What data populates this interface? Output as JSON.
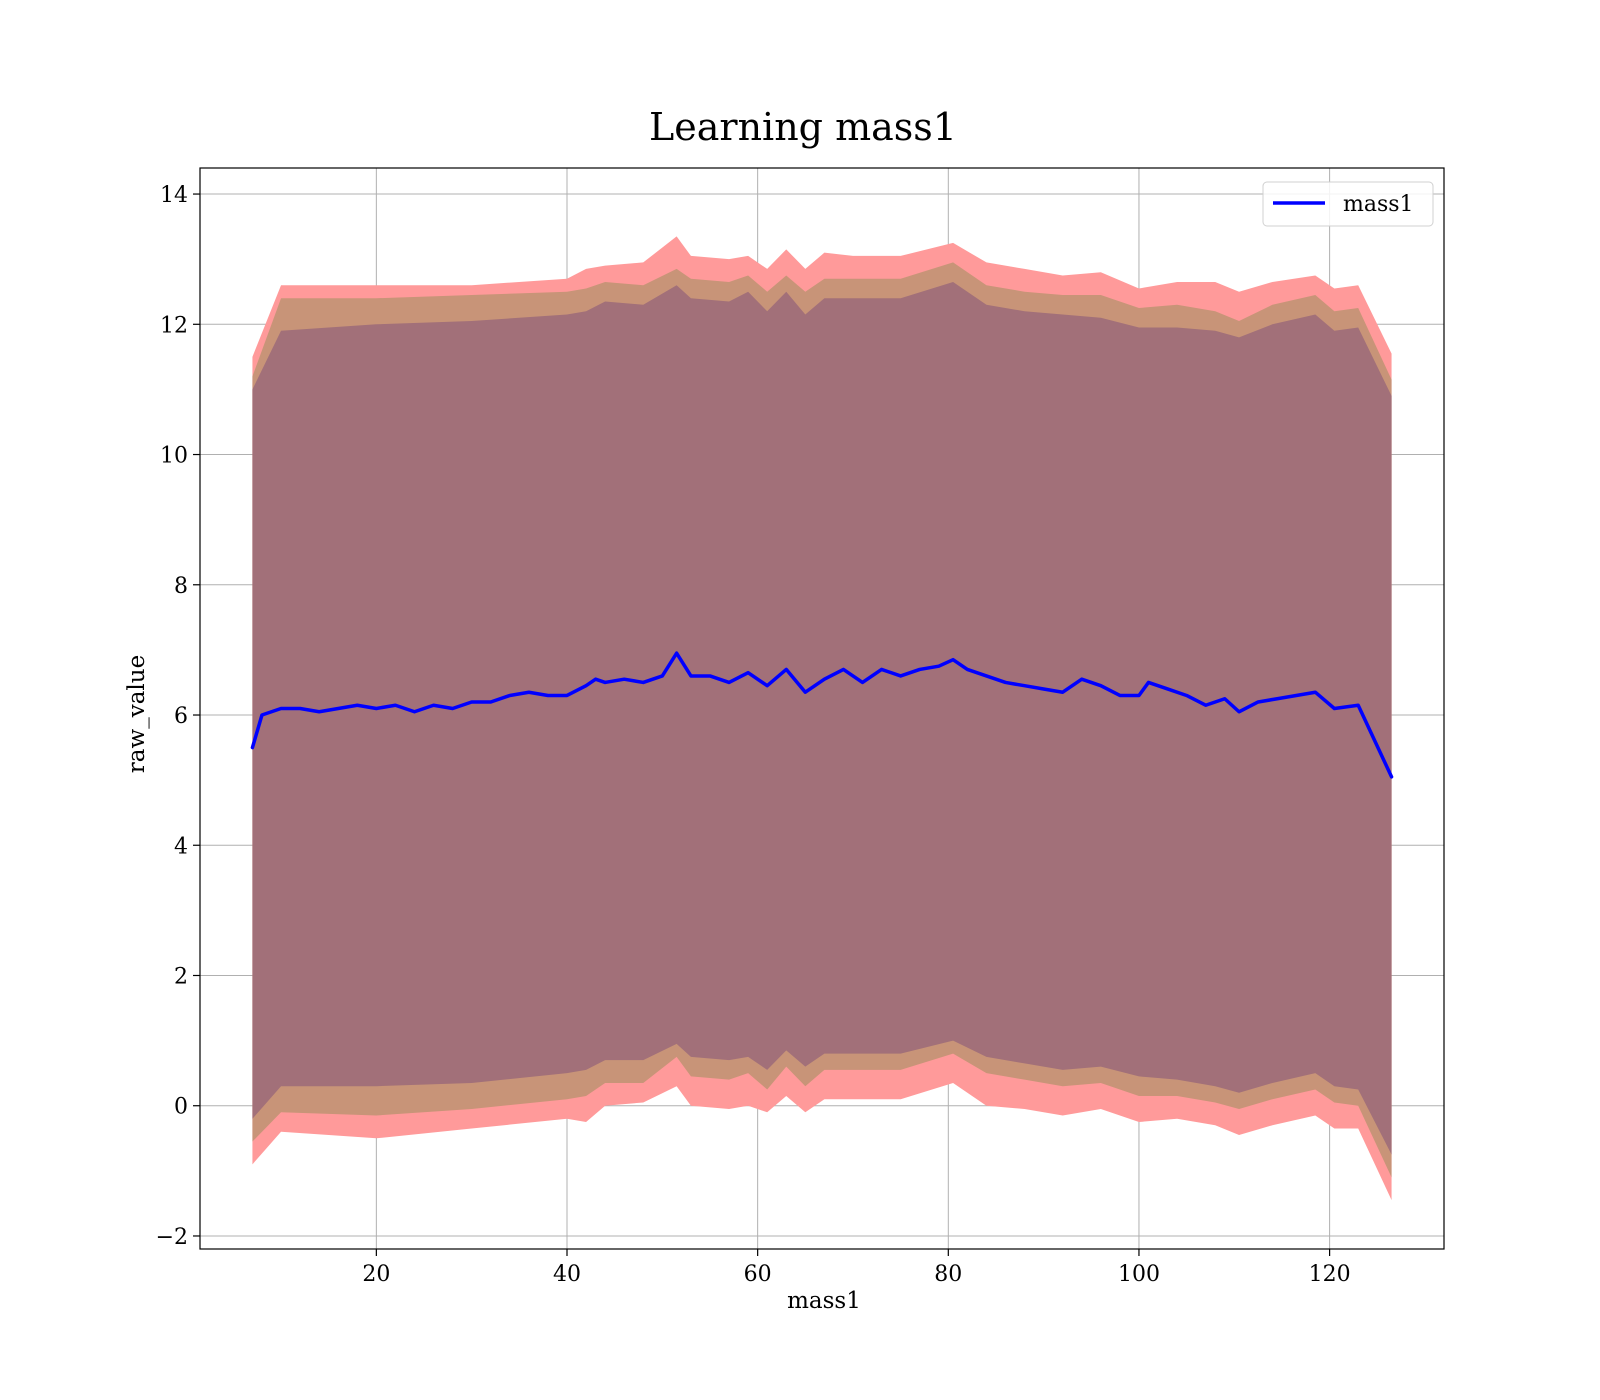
{
  "chart_data": {
    "type": "line",
    "title": "Learning mass1",
    "xlabel": "mass1",
    "ylabel": "raw_value",
    "xlim": [
      1.5,
      132
    ],
    "ylim": [
      -2.2,
      14.4
    ],
    "xticks": [
      20,
      40,
      60,
      80,
      100,
      120
    ],
    "yticks": [
      -2,
      0,
      2,
      4,
      6,
      8,
      10,
      12,
      14
    ],
    "grid": true,
    "legend": {
      "position": "top-right",
      "entries": [
        "mass1"
      ]
    },
    "colors": {
      "line": "#0000ff",
      "band_outer": "#ff9a9a",
      "band_middle": "#c89478",
      "band_inner": "#a27079",
      "grid": "#b0b0b0"
    },
    "series": [
      {
        "name": "mass1",
        "x": [
          7,
          8,
          9,
          10,
          12,
          14,
          16,
          18,
          20,
          22,
          24,
          26,
          28,
          30,
          32,
          34,
          36,
          38,
          40,
          42,
          43,
          44,
          46,
          48,
          50,
          51.5,
          53,
          55,
          57,
          59,
          61,
          63,
          65,
          67,
          69,
          71,
          73,
          75,
          77,
          79,
          80.5,
          82,
          84,
          86,
          88,
          90,
          92,
          94,
          96,
          98,
          100,
          101,
          103,
          105,
          107,
          109,
          110.5,
          112.5,
          114.5,
          116.5,
          118.5,
          120.5,
          123,
          126.5
        ],
        "y": [
          5.5,
          6.0,
          6.05,
          6.1,
          6.1,
          6.05,
          6.1,
          6.15,
          6.1,
          6.15,
          6.05,
          6.15,
          6.1,
          6.2,
          6.2,
          6.3,
          6.35,
          6.3,
          6.3,
          6.45,
          6.55,
          6.5,
          6.55,
          6.5,
          6.6,
          6.95,
          6.6,
          6.6,
          6.5,
          6.65,
          6.45,
          6.7,
          6.35,
          6.55,
          6.7,
          6.5,
          6.7,
          6.6,
          6.7,
          6.75,
          6.85,
          6.7,
          6.6,
          6.5,
          6.45,
          6.4,
          6.35,
          6.55,
          6.45,
          6.3,
          6.3,
          6.5,
          6.4,
          6.3,
          6.15,
          6.25,
          6.05,
          6.2,
          6.25,
          6.3,
          6.35,
          6.1,
          6.15,
          5.05
        ]
      }
    ],
    "bands": [
      {
        "x": [
          7,
          10,
          20,
          30,
          40,
          42,
          44,
          48,
          51.5,
          53,
          57,
          59,
          61,
          63,
          65,
          67,
          70,
          75,
          80.5,
          84,
          88,
          92,
          96,
          100,
          104,
          108,
          110.5,
          114,
          118.5,
          120.5,
          123,
          126.5
        ],
        "upper": [
          11.5,
          12.6,
          12.6,
          12.6,
          12.7,
          12.85,
          12.9,
          12.95,
          13.35,
          13.05,
          13.0,
          13.05,
          12.85,
          13.15,
          12.85,
          13.1,
          13.05,
          13.05,
          13.25,
          12.95,
          12.85,
          12.75,
          12.8,
          12.55,
          12.65,
          12.65,
          12.5,
          12.65,
          12.75,
          12.55,
          12.6,
          11.55
        ],
        "lower": [
          -0.9,
          -0.4,
          -0.5,
          -0.35,
          -0.2,
          -0.25,
          0.0,
          0.05,
          0.3,
          0.0,
          -0.05,
          0.0,
          -0.1,
          0.15,
          -0.1,
          0.1,
          0.1,
          0.1,
          0.35,
          0.0,
          -0.05,
          -0.15,
          -0.05,
          -0.25,
          -0.2,
          -0.3,
          -0.45,
          -0.3,
          -0.15,
          -0.35,
          -0.35,
          -1.45
        ]
      },
      {
        "x": [
          7,
          10,
          20,
          30,
          40,
          42,
          44,
          48,
          51.5,
          53,
          57,
          59,
          61,
          63,
          65,
          67,
          70,
          75,
          80.5,
          84,
          88,
          92,
          96,
          100,
          104,
          108,
          110.5,
          114,
          118.5,
          120.5,
          123,
          126.5
        ],
        "upper": [
          11.2,
          12.4,
          12.4,
          12.45,
          12.5,
          12.55,
          12.65,
          12.6,
          12.85,
          12.7,
          12.65,
          12.75,
          12.5,
          12.75,
          12.5,
          12.7,
          12.7,
          12.7,
          12.95,
          12.6,
          12.5,
          12.45,
          12.45,
          12.25,
          12.3,
          12.2,
          12.05,
          12.3,
          12.45,
          12.2,
          12.25,
          11.15
        ],
        "lower": [
          -0.55,
          -0.1,
          -0.15,
          -0.05,
          0.1,
          0.15,
          0.35,
          0.35,
          0.75,
          0.45,
          0.4,
          0.5,
          0.25,
          0.6,
          0.3,
          0.55,
          0.55,
          0.55,
          0.8,
          0.5,
          0.4,
          0.3,
          0.35,
          0.15,
          0.15,
          0.05,
          -0.05,
          0.1,
          0.25,
          0.05,
          0.0,
          -1.1
        ]
      },
      {
        "x": [
          7,
          10,
          20,
          30,
          40,
          42,
          44,
          48,
          51.5,
          53,
          57,
          59,
          61,
          63,
          65,
          67,
          70,
          75,
          80.5,
          84,
          88,
          92,
          96,
          100,
          104,
          108,
          110.5,
          114,
          118.5,
          120.5,
          123,
          126.5
        ],
        "upper": [
          11.0,
          11.9,
          12.0,
          12.05,
          12.15,
          12.2,
          12.35,
          12.3,
          12.6,
          12.4,
          12.35,
          12.5,
          12.2,
          12.5,
          12.15,
          12.4,
          12.4,
          12.4,
          12.65,
          12.3,
          12.2,
          12.15,
          12.1,
          11.95,
          11.95,
          11.9,
          11.8,
          12.0,
          12.15,
          11.9,
          11.95,
          10.9
        ],
        "lower": [
          -0.2,
          0.3,
          0.3,
          0.35,
          0.5,
          0.55,
          0.7,
          0.7,
          0.95,
          0.75,
          0.7,
          0.75,
          0.55,
          0.85,
          0.6,
          0.8,
          0.8,
          0.8,
          1.0,
          0.75,
          0.65,
          0.55,
          0.6,
          0.45,
          0.4,
          0.3,
          0.2,
          0.35,
          0.5,
          0.3,
          0.25,
          -0.75
        ]
      }
    ]
  }
}
